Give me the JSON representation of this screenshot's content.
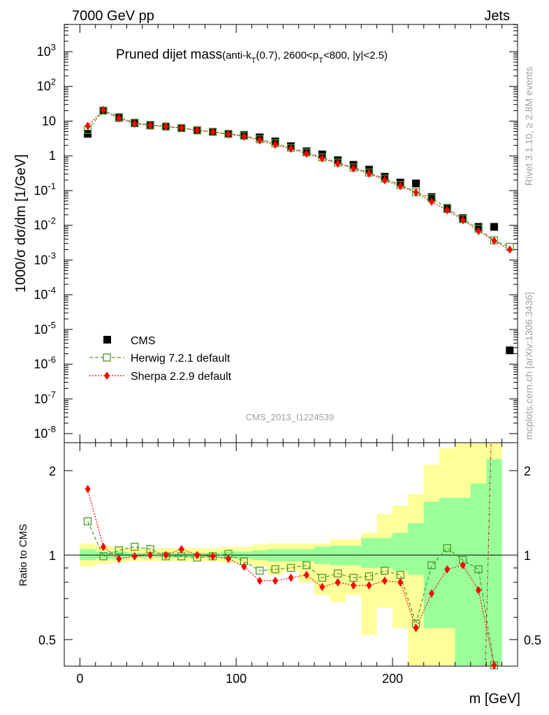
{
  "header": {
    "left": "7000 GeV pp",
    "right": "Jets"
  },
  "side_text": {
    "rivet": "Rivet 3.1.10, ≥ 2.8M events",
    "mcplots": "mcplots.cern.ch [arXiv:1306.3436]"
  },
  "analysis_id": "CMS_2013_I1224539",
  "colors": {
    "cms": "#000000",
    "herwig": "#4a9a2a",
    "sherpa": "#ff0000",
    "band_inner": "#99ff99",
    "band_outer": "#ffff99"
  },
  "chart_data": [
    {
      "type": "scatter",
      "title_main": "Pruned dijet mass",
      "title_sub": "(anti-k",
      "title_sub_T": "T",
      "title_sub_rest": "(0.7), 2600<p",
      "title_sub_T2": "T",
      "title_sub_end": "<800, |y|<2.5)",
      "ylabel": "1000/σ dσ/dm [1/GeV]",
      "yscale": "log",
      "ylim": [
        1e-08,
        5000
      ],
      "xlim": [
        -10,
        280
      ],
      "ytick_labels": [
        "10^-8",
        "10^-7",
        "10^-6",
        "10^-5",
        "10^-4",
        "10^-3",
        "10^-2",
        "10^-1",
        "1",
        "10",
        "10^2",
        "10^3"
      ],
      "x": [
        5,
        15,
        25,
        35,
        45,
        55,
        65,
        75,
        85,
        95,
        105,
        115,
        125,
        135,
        145,
        155,
        165,
        175,
        185,
        195,
        205,
        215,
        225,
        235,
        245,
        255,
        265,
        275
      ],
      "series": [
        {
          "name": "CMS",
          "values": [
            4.3,
            20,
            12.5,
            8.7,
            7.5,
            7.0,
            6.3,
            5.5,
            4.9,
            4.3,
            4.0,
            3.4,
            2.6,
            1.9,
            1.35,
            1.1,
            0.75,
            0.55,
            0.4,
            0.25,
            0.17,
            0.16,
            0.065,
            0.03,
            0.016,
            0.009,
            0.009,
            2.5e-06
          ]
        },
        {
          "name": "Herwig 7.2.1 default",
          "values": [
            5.6,
            20,
            13,
            9,
            7.8,
            7.0,
            6.3,
            5.4,
            4.9,
            4.3,
            3.8,
            3.0,
            2.3,
            1.7,
            1.25,
            0.9,
            0.64,
            0.46,
            0.33,
            0.22,
            0.145,
            0.09,
            0.06,
            0.032,
            0.015,
            0.008,
            0.0037,
            0.0024
          ]
        },
        {
          "name": "Sherpa 2.2.9 default",
          "values": [
            7.3,
            21,
            12,
            8.5,
            7.5,
            7.0,
            6.4,
            5.4,
            4.9,
            4.2,
            3.6,
            2.8,
            2.1,
            1.6,
            1.15,
            0.85,
            0.6,
            0.43,
            0.31,
            0.2,
            0.135,
            0.088,
            0.048,
            0.027,
            0.014,
            0.0068,
            0.0036,
            0.002
          ]
        }
      ]
    },
    {
      "type": "scatter",
      "ylabel": "Ratio to CMS",
      "xlabel": "m [GeV]",
      "yscale": "log",
      "ylim": [
        0.35,
        2.5
      ],
      "xlim": [
        -10,
        280
      ],
      "xtick_labels": [
        "0",
        "100",
        "200"
      ],
      "ytick_labels": [
        "0.5",
        "1",
        "2"
      ],
      "x": [
        5,
        15,
        25,
        35,
        45,
        55,
        65,
        75,
        85,
        95,
        105,
        115,
        125,
        135,
        145,
        155,
        165,
        175,
        185,
        195,
        205,
        215,
        225,
        235,
        245,
        255,
        265
      ],
      "series": [
        {
          "name": "Herwig 7.2.1 default",
          "values": [
            1.32,
            0.99,
            1.04,
            1.07,
            1.05,
            0.99,
            0.99,
            0.98,
            0.99,
            1.01,
            0.95,
            0.88,
            0.89,
            0.9,
            0.92,
            0.83,
            0.86,
            0.83,
            0.84,
            0.88,
            0.85,
            0.57,
            0.92,
            1.06,
            0.96,
            0.89,
            0.35
          ]
        },
        {
          "name": "Sherpa 2.2.9 default",
          "values": [
            1.72,
            1.07,
            0.97,
            0.99,
            1.0,
            1.0,
            1.05,
            1.0,
            0.99,
            0.97,
            0.91,
            0.81,
            0.81,
            0.83,
            0.85,
            0.77,
            0.8,
            0.78,
            0.78,
            0.81,
            0.8,
            0.55,
            0.73,
            0.89,
            0.92,
            0.75,
            0.35
          ]
        }
      ],
      "band_inner_ranges": [
        [
          0.96,
          1.05
        ],
        [
          0.97,
          1.03
        ],
        [
          0.97,
          1.03
        ],
        [
          0.98,
          1.02
        ],
        [
          0.98,
          1.02
        ],
        [
          0.98,
          1.02
        ],
        [
          0.98,
          1.02
        ],
        [
          0.98,
          1.02
        ],
        [
          0.98,
          1.02
        ],
        [
          0.97,
          1.03
        ],
        [
          0.97,
          1.03
        ],
        [
          0.96,
          1.04
        ],
        [
          0.95,
          1.05
        ],
        [
          0.95,
          1.05
        ],
        [
          0.95,
          1.05
        ],
        [
          0.93,
          1.07
        ],
        [
          0.92,
          1.08
        ],
        [
          0.92,
          1.08
        ],
        [
          0.9,
          1.15
        ],
        [
          0.9,
          1.15
        ],
        [
          0.88,
          1.2
        ],
        [
          0.85,
          1.3
        ],
        [
          0.55,
          1.55
        ],
        [
          0.55,
          1.6
        ],
        [
          0.35,
          1.6
        ],
        [
          0.35,
          1.8
        ],
        [
          0.35,
          2.2
        ]
      ],
      "band_outer_ranges": [
        [
          0.91,
          1.1
        ],
        [
          0.93,
          1.08
        ],
        [
          0.94,
          1.07
        ],
        [
          0.95,
          1.06
        ],
        [
          0.95,
          1.06
        ],
        [
          0.95,
          1.06
        ],
        [
          0.95,
          1.06
        ],
        [
          0.95,
          1.06
        ],
        [
          0.95,
          1.06
        ],
        [
          0.94,
          1.07
        ],
        [
          0.93,
          1.07
        ],
        [
          0.91,
          1.09
        ],
        [
          0.85,
          1.1
        ],
        [
          0.88,
          1.1
        ],
        [
          0.8,
          1.1
        ],
        [
          0.72,
          1.1
        ],
        [
          0.68,
          1.14
        ],
        [
          0.72,
          1.14
        ],
        [
          0.52,
          1.2
        ],
        [
          0.65,
          1.4
        ],
        [
          0.55,
          1.5
        ],
        [
          0.35,
          1.65
        ],
        [
          0.35,
          2.1
        ],
        [
          0.35,
          2.4
        ],
        [
          0.35,
          2.5
        ],
        [
          0.35,
          2.5
        ],
        [
          0.35,
          2.5
        ]
      ]
    }
  ],
  "legend": [
    {
      "label": "CMS"
    },
    {
      "label": "Herwig 7.2.1 default"
    },
    {
      "label": "Sherpa 2.2.9 default"
    }
  ]
}
